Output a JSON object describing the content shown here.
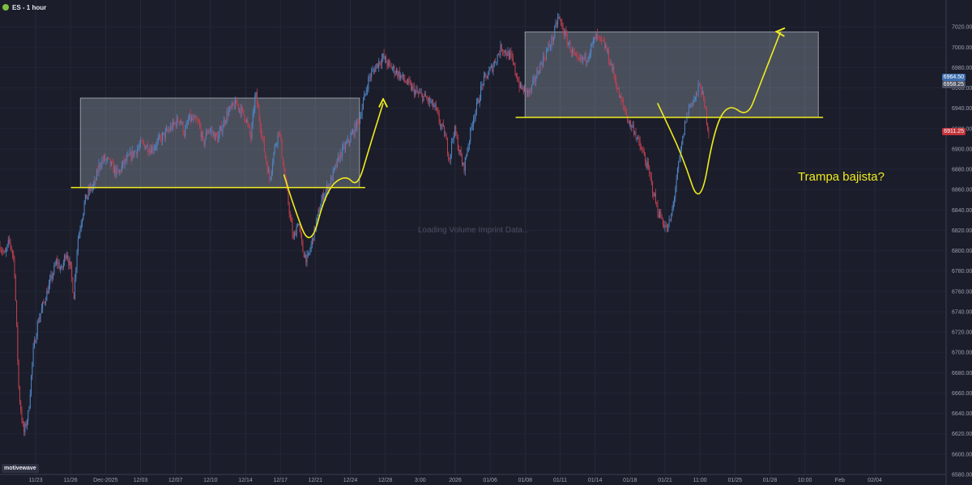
{
  "header": {
    "title": "ES - 1 hour"
  },
  "brand": "motivewave",
  "watermark": "Loading Volume Imprint Data...",
  "annotation": "Trampa bajista?",
  "price_tags": {
    "top": "6964.50",
    "second": "6958.25",
    "current": "6911.25"
  },
  "colors": {
    "background": "#1b1d2a",
    "up_candle": "#4f86c6",
    "down_candle": "#c0404f",
    "annotation": "#f0ec1c",
    "box_fill": "#c8d4e0",
    "current_tag": "#c0343c",
    "top_tag": "#3d6fb0"
  },
  "chart_data": {
    "type": "line",
    "instrument": "ES",
    "timeframe": "1 hour",
    "ylim": [
      6580,
      7040
    ],
    "y_ticks": [
      7020,
      7000,
      6980,
      6960,
      6940,
      6920,
      6900,
      6880,
      6860,
      6840,
      6820,
      6800,
      6780,
      6760,
      6740,
      6720,
      6700,
      6680,
      6660,
      6640,
      6620,
      6600,
      6580
    ],
    "x_ticks": [
      "11/23",
      "11/26",
      "Dec-2025",
      "12/03",
      "12/07",
      "12/10",
      "12/14",
      "12/17",
      "12/21",
      "12/24",
      "12/28",
      "3:00",
      "2026",
      "01/06",
      "01/08",
      "01/11",
      "01/14",
      "01/18",
      "01/21",
      "11:00",
      "01/25",
      "01/28",
      "10:00",
      "Feb",
      "02/04"
    ],
    "price_path": [
      [
        0,
        6805
      ],
      [
        0.5,
        6795
      ],
      [
        1,
        6810
      ],
      [
        1.5,
        6790
      ],
      [
        2,
        6660
      ],
      [
        2.5,
        6620
      ],
      [
        3,
        6640
      ],
      [
        3.5,
        6700
      ],
      [
        4,
        6730
      ],
      [
        5,
        6760
      ],
      [
        6,
        6790
      ],
      [
        6.5,
        6780
      ],
      [
        7,
        6800
      ],
      [
        7.5,
        6780
      ],
      [
        7.8,
        6755
      ],
      [
        8.2,
        6810
      ],
      [
        8.6,
        6830
      ],
      [
        9,
        6850
      ],
      [
        9.5,
        6860
      ],
      [
        10,
        6865
      ],
      [
        10.5,
        6885
      ],
      [
        11,
        6890
      ],
      [
        11.5,
        6887
      ],
      [
        12,
        6880
      ],
      [
        12.5,
        6875
      ],
      [
        13,
        6885
      ],
      [
        14,
        6895
      ],
      [
        15,
        6905
      ],
      [
        16,
        6900
      ],
      [
        17,
        6910
      ],
      [
        18,
        6920
      ],
      [
        19,
        6930
      ],
      [
        19.5,
        6915
      ],
      [
        20,
        6930
      ],
      [
        21,
        6925
      ],
      [
        21.5,
        6905
      ],
      [
        22,
        6920
      ],
      [
        23,
        6910
      ],
      [
        24,
        6935
      ],
      [
        25,
        6945
      ],
      [
        26,
        6930
      ],
      [
        26.5,
        6910
      ],
      [
        27,
        6955
      ],
      [
        27.5,
        6925
      ],
      [
        28,
        6895
      ],
      [
        28.5,
        6870
      ],
      [
        29,
        6900
      ],
      [
        29.5,
        6920
      ],
      [
        30,
        6880
      ],
      [
        30.5,
        6845
      ],
      [
        31,
        6810
      ],
      [
        31.5,
        6830
      ],
      [
        32,
        6800
      ],
      [
        32.5,
        6790
      ],
      [
        33,
        6810
      ],
      [
        33.5,
        6830
      ],
      [
        34,
        6850
      ],
      [
        35,
        6870
      ],
      [
        36,
        6895
      ],
      [
        37,
        6910
      ],
      [
        38,
        6930
      ],
      [
        38.5,
        6950
      ],
      [
        39,
        6970
      ],
      [
        40,
        6985
      ],
      [
        40.5,
        6990
      ],
      [
        41,
        6983
      ],
      [
        42,
        6975
      ],
      [
        43,
        6965
      ],
      [
        44,
        6955
      ],
      [
        45,
        6950
      ],
      [
        46,
        6940
      ],
      [
        46.5,
        6925
      ],
      [
        47,
        6915
      ],
      [
        47.5,
        6890
      ],
      [
        48,
        6920
      ],
      [
        48.5,
        6900
      ],
      [
        49,
        6880
      ],
      [
        49.5,
        6905
      ],
      [
        50,
        6930
      ],
      [
        50.5,
        6945
      ],
      [
        51,
        6965
      ],
      [
        52,
        6980
      ],
      [
        53,
        7000
      ],
      [
        54,
        6990
      ],
      [
        55,
        6960
      ],
      [
        56,
        6955
      ],
      [
        57,
        6980
      ],
      [
        58,
        7000
      ],
      [
        58.5,
        7010
      ],
      [
        59,
        7030
      ],
      [
        60,
        7005
      ],
      [
        61,
        6985
      ],
      [
        62,
        6990
      ],
      [
        63,
        7010
      ],
      [
        64,
        7000
      ],
      [
        65,
        6970
      ],
      [
        65.5,
        6950
      ],
      [
        66,
        6940
      ],
      [
        66.5,
        6925
      ],
      [
        67,
        6920
      ],
      [
        67.5,
        6905
      ],
      [
        68,
        6895
      ],
      [
        68.5,
        6880
      ],
      [
        69,
        6860
      ],
      [
        69.5,
        6840
      ],
      [
        70,
        6830
      ],
      [
        70.5,
        6820
      ],
      [
        71,
        6835
      ],
      [
        71.5,
        6870
      ],
      [
        72,
        6900
      ],
      [
        72.5,
        6930
      ],
      [
        73,
        6945
      ],
      [
        73.5,
        6950
      ],
      [
        74,
        6964.5
      ],
      [
        74.5,
        6940
      ],
      [
        75,
        6911.25
      ]
    ],
    "range_boxes": [
      {
        "from": 8.5,
        "to": 38,
        "low": 6862,
        "high": 6950
      },
      {
        "from": 55.5,
        "to": 86.5,
        "low": 6931,
        "high": 7015
      }
    ],
    "support_lines": [
      {
        "from": 7.5,
        "to": 38.6,
        "value": 6862
      },
      {
        "from": 54.5,
        "to": 87,
        "value": 6931
      }
    ],
    "drawn_paths": [
      [
        [
          30,
          6875
        ],
        [
          31,
          6845
        ],
        [
          32.8,
          6800
        ],
        [
          34.5,
          6860
        ],
        [
          36.5,
          6875
        ],
        [
          37.8,
          6862
        ],
        [
          39,
          6900
        ],
        [
          40.5,
          6945
        ]
      ],
      [
        [
          69.5,
          6945
        ],
        [
          72.2,
          6892
        ],
        [
          74,
          6840
        ],
        [
          75.5,
          6920
        ],
        [
          77,
          6945
        ],
        [
          79,
          6931
        ],
        [
          80.2,
          6960
        ],
        [
          82.5,
          7015
        ]
      ]
    ]
  }
}
